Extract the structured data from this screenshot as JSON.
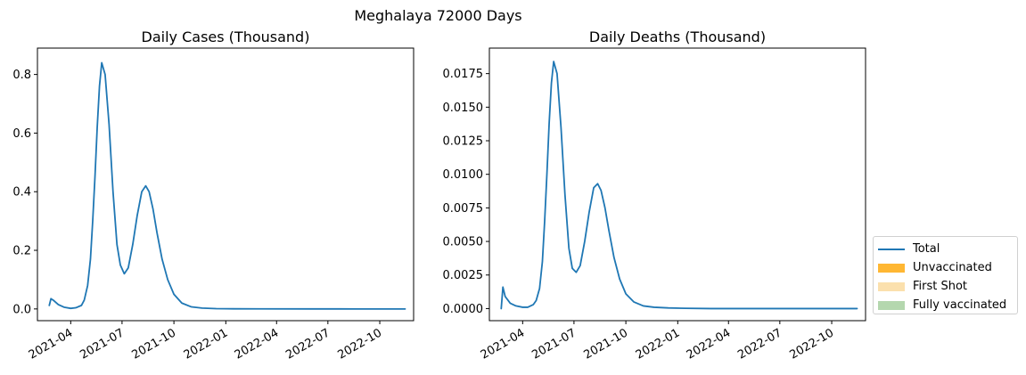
{
  "suptitle": "Meghalaya 72000 Days",
  "chart_data": [
    {
      "type": "line",
      "title": "Daily Cases (Thousand)",
      "x_ticks": [
        "2021-04",
        "2021-07",
        "2021-10",
        "2022-01",
        "2022-04",
        "2022-07",
        "2022-10"
      ],
      "y_ticks": [
        "0.0",
        "0.2",
        "0.4",
        "0.6",
        "0.8"
      ],
      "ylim": [
        -0.04,
        0.89
      ],
      "xlim": [
        "2021-02-01",
        "2022-11-30"
      ],
      "series": [
        {
          "name": "Total",
          "color": "#1f77b4",
          "x": [
            "2021-02-22",
            "2021-02-25",
            "2021-03-01",
            "2021-03-10",
            "2021-03-20",
            "2021-04-01",
            "2021-04-10",
            "2021-04-20",
            "2021-04-25",
            "2021-05-01",
            "2021-05-06",
            "2021-05-10",
            "2021-05-14",
            "2021-05-18",
            "2021-05-22",
            "2021-05-26",
            "2021-06-01",
            "2021-06-08",
            "2021-06-15",
            "2021-06-22",
            "2021-06-28",
            "2021-07-05",
            "2021-07-12",
            "2021-07-20",
            "2021-07-28",
            "2021-08-05",
            "2021-08-12",
            "2021-08-18",
            "2021-08-25",
            "2021-09-01",
            "2021-09-10",
            "2021-09-20",
            "2021-10-01",
            "2021-10-15",
            "2021-11-01",
            "2021-11-20",
            "2021-12-15",
            "2022-01-15",
            "2022-03-01",
            "2022-06-01",
            "2022-09-01",
            "2022-11-15"
          ],
          "values": [
            0.012,
            0.035,
            0.03,
            0.015,
            0.006,
            0.002,
            0.004,
            0.012,
            0.03,
            0.08,
            0.17,
            0.3,
            0.45,
            0.62,
            0.76,
            0.84,
            0.8,
            0.63,
            0.4,
            0.22,
            0.15,
            0.12,
            0.14,
            0.22,
            0.32,
            0.4,
            0.42,
            0.4,
            0.34,
            0.26,
            0.17,
            0.1,
            0.05,
            0.02,
            0.007,
            0.003,
            0.001,
            0.0005,
            0.0002,
            0.0001,
            0.0,
            0.0
          ]
        }
      ]
    },
    {
      "type": "line",
      "title": "Daily Deaths (Thousand)",
      "x_ticks": [
        "2021-04",
        "2021-07",
        "2021-10",
        "2022-01",
        "2022-04",
        "2022-07",
        "2022-10"
      ],
      "y_ticks": [
        "0.0000",
        "0.0025",
        "0.0050",
        "0.0075",
        "0.0100",
        "0.0125",
        "0.0150",
        "0.0175"
      ],
      "ylim": [
        -0.0009,
        0.0194
      ],
      "xlim": [
        "2021-02-01",
        "2022-11-30"
      ],
      "series": [
        {
          "name": "Total",
          "color": "#1f77b4",
          "x": [
            "2021-02-22",
            "2021-02-25",
            "2021-03-01",
            "2021-03-10",
            "2021-03-20",
            "2021-04-01",
            "2021-04-10",
            "2021-04-20",
            "2021-04-25",
            "2021-05-01",
            "2021-05-06",
            "2021-05-10",
            "2021-05-14",
            "2021-05-18",
            "2021-05-22",
            "2021-05-26",
            "2021-06-01",
            "2021-06-08",
            "2021-06-15",
            "2021-06-22",
            "2021-06-28",
            "2021-07-05",
            "2021-07-12",
            "2021-07-20",
            "2021-07-28",
            "2021-08-05",
            "2021-08-12",
            "2021-08-18",
            "2021-08-25",
            "2021-09-01",
            "2021-09-10",
            "2021-09-20",
            "2021-10-01",
            "2021-10-15",
            "2021-11-01",
            "2021-11-20",
            "2021-12-15",
            "2022-01-15",
            "2022-03-01",
            "2022-06-01",
            "2022-09-01",
            "2022-11-15"
          ],
          "values": [
            0.0,
            0.0016,
            0.0009,
            0.0004,
            0.0002,
            0.0001,
            0.0001,
            0.0003,
            0.0006,
            0.0015,
            0.0035,
            0.0065,
            0.01,
            0.0138,
            0.0168,
            0.0184,
            0.0175,
            0.0135,
            0.0085,
            0.0045,
            0.003,
            0.0027,
            0.0032,
            0.005,
            0.0072,
            0.009,
            0.0093,
            0.0088,
            0.0075,
            0.0058,
            0.0038,
            0.0022,
            0.0011,
            0.0005,
            0.0002,
            0.0001,
            5e-05,
            2e-05,
            0.0,
            0.0,
            0.0,
            0.0
          ]
        }
      ]
    }
  ],
  "legend": {
    "location": "right",
    "items": [
      {
        "label": "Total",
        "kind": "line",
        "color": "#1f77b4"
      },
      {
        "label": "Unvaccinated",
        "kind": "patch",
        "color": "#ffb733"
      },
      {
        "label": "First Shot",
        "kind": "patch",
        "color": "#fbe0ad"
      },
      {
        "label": "Fully vaccinated",
        "kind": "patch",
        "color": "#b4d7ae"
      }
    ]
  }
}
